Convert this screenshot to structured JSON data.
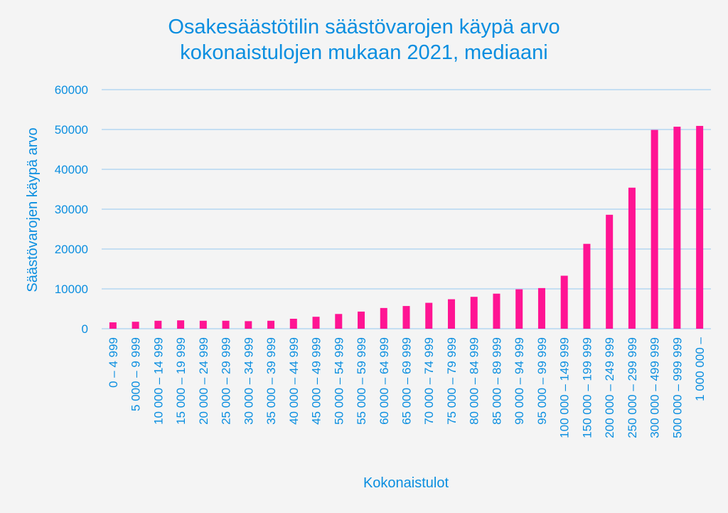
{
  "chart_data": {
    "type": "bar",
    "title_line1": "Osakesäästötilin säästövarojen käypä arvo",
    "title_line2": "kokonaistulojen mukaan 2021, mediaani",
    "xlabel": "Kokonaistulot",
    "ylabel": "Säästövarojen käypä arvo",
    "ylim": [
      0,
      60000
    ],
    "yticks": [
      0,
      10000,
      20000,
      30000,
      40000,
      50000,
      60000
    ],
    "grid": true,
    "bar_color": "#ff1493",
    "categories": [
      "0 – 4 999",
      "5 000 – 9 999",
      "10 000 – 14 999",
      "15 000 – 19 999",
      "20 000 – 24 999",
      "25 000 – 29 999",
      "30 000 – 34 999",
      "35 000 – 39 999",
      "40 000 – 44 999",
      "45 000 – 49 999",
      "50 000 – 54 999",
      "55 000 – 59 999",
      "60 000 – 64 999",
      "65 000 – 69 999",
      "70 000 – 74 999",
      "75 000 – 79 999",
      "80 000 – 84 999",
      "85 000 – 89 999",
      "90 000 – 94 999",
      "95 000 – 99 999",
      "100 000 – 149 999",
      "150 000 – 199 999",
      "200 000 – 249 999",
      "250 000 – 299 999",
      "300 000 – 499 999",
      "500 000 – 999 999",
      "1 000 000 –"
    ],
    "values": [
      1600,
      1750,
      2000,
      2100,
      2000,
      2000,
      1900,
      2000,
      2500,
      3000,
      3700,
      4300,
      5200,
      5700,
      6500,
      7400,
      8000,
      8800,
      9900,
      10200,
      13300,
      21300,
      28600,
      35400,
      49900,
      50700,
      50900
    ]
  }
}
